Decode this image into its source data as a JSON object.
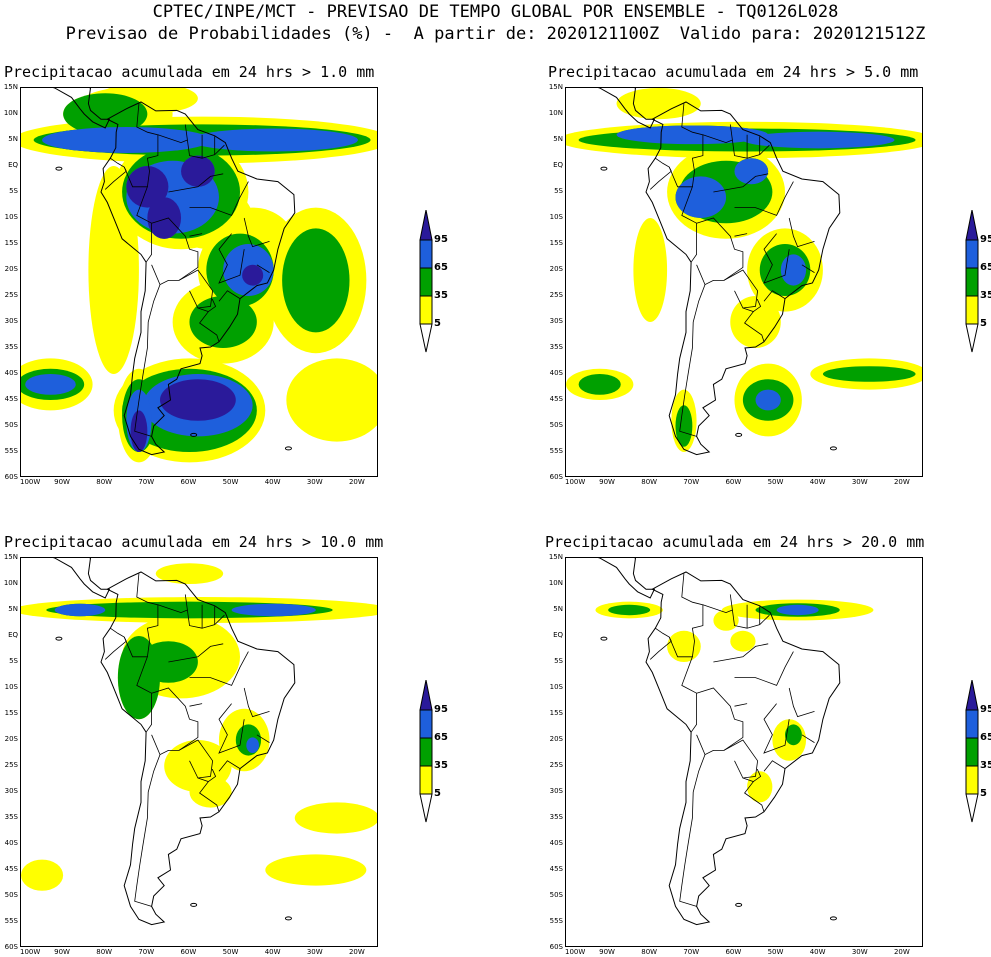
{
  "header": {
    "line1": "CPTEC/INPE/MCT - PREVISAO DE TEMPO GLOBAL POR ENSEMBLE - TQ0126L028",
    "line2": "Previsao de Probabilidades (%) -  A partir de: 2020121100Z  Valido para: 2020121512Z"
  },
  "colors": {
    "p5": "#ffff00",
    "p35": "#00a000",
    "p65": "#1e5fdc",
    "p95": "#2a1a9a",
    "land": "#ffffff",
    "border": "#000000"
  },
  "lat_labels": [
    "15N",
    "10N",
    "5N",
    "EQ",
    "5S",
    "10S",
    "15S",
    "20S",
    "25S",
    "30S",
    "35S",
    "40S",
    "45S",
    "50S",
    "55S",
    "60S"
  ],
  "lon_labels": [
    "100W",
    "90W",
    "80W",
    "70W",
    "60W",
    "50W",
    "40W",
    "30W",
    "20W"
  ],
  "colorbar": {
    "labels": [
      "95",
      "65",
      "35",
      "5"
    ]
  },
  "panels": [
    {
      "title": "Precipitacao acumulada em 24 hrs > 1.0 mm",
      "threshold_mm": 1.0,
      "intensity": 4
    },
    {
      "title": "Precipitacao acumulada em 24 hrs > 5.0 mm",
      "threshold_mm": 5.0,
      "intensity": 3
    },
    {
      "title": "Precipitacao acumulada em 24 hrs > 10.0 mm",
      "threshold_mm": 10.0,
      "intensity": 2
    },
    {
      "title": "Precipitacao acumulada em 24 hrs > 20.0 mm",
      "threshold_mm": 20.0,
      "intensity": 1
    }
  ]
}
